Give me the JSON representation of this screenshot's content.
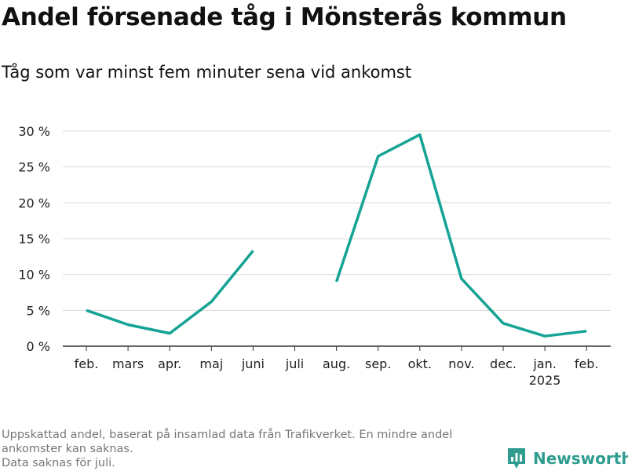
{
  "header": {
    "title": "Andel försenade tåg i Mönsterås kommun",
    "subtitle": "Tåg som var minst fem minuter sena vid ankomst"
  },
  "footer": {
    "note_line_1": "Uppskattad andel, baserat på insamlad data från Trafikverket. En mindre andel",
    "note_line_2": "ankomster kan saknas.",
    "note_line_3": "Data saknas för juli."
  },
  "brand": {
    "name": "Newsworthy",
    "icon": "newsworthy-logo-icon",
    "color": "#2e9c8f"
  },
  "chart_data": {
    "type": "line",
    "categories": [
      "feb.",
      "mars",
      "apr.",
      "maj",
      "juni",
      "juli",
      "aug.",
      "sep.",
      "okt.",
      "nov.",
      "dec.",
      "jan.",
      "feb."
    ],
    "category_sublabels": [
      "",
      "",
      "",
      "",
      "",
      "",
      "",
      "",
      "",
      "",
      "",
      "2025",
      ""
    ],
    "series": [
      {
        "values": [
          5.0,
          3.0,
          1.8,
          6.2,
          13.3,
          null,
          9.0,
          26.5,
          29.5,
          9.4,
          3.2,
          1.4,
          2.1
        ],
        "color": "#14a394"
      }
    ],
    "ylim": [
      0,
      30
    ],
    "yticks": [
      0,
      5,
      10,
      15,
      20,
      25,
      30
    ],
    "ytick_labels": [
      "0 %",
      "5 %",
      "10 %",
      "15 %",
      "20 %",
      "25 %",
      "30 %"
    ],
    "grid": true,
    "legend": "none"
  }
}
